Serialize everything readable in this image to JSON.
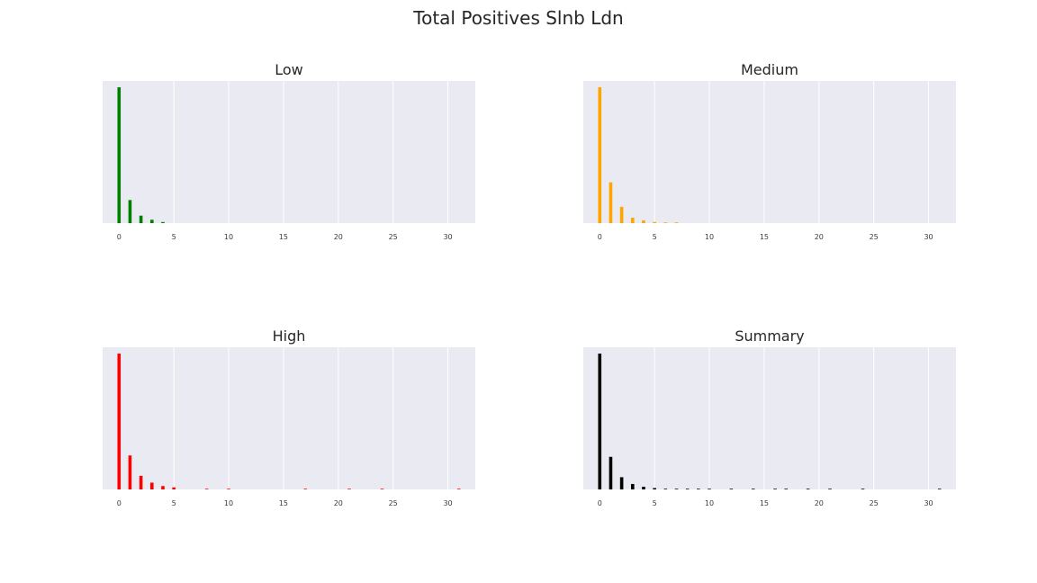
{
  "figure_title": "Total Positives Slnb Ldn",
  "chart_data": [
    {
      "type": "bar",
      "title": "Low",
      "color": "#008000",
      "xlabel": "",
      "ylabel": "",
      "xlim": [
        -1.5,
        32.5
      ],
      "xticks": [
        0,
        5,
        10,
        15,
        20,
        25,
        30
      ],
      "grid": true,
      "x": [
        0,
        1,
        2,
        3,
        4
      ],
      "values": [
        100,
        17,
        5.5,
        2.5,
        0.8
      ]
    },
    {
      "type": "bar",
      "title": "Medium",
      "color": "#FFA500",
      "xlabel": "",
      "ylabel": "",
      "xlim": [
        -1.5,
        32.5
      ],
      "xticks": [
        0,
        5,
        10,
        15,
        20,
        25,
        30
      ],
      "grid": true,
      "x": [
        0,
        1,
        2,
        3,
        4,
        5,
        6,
        7
      ],
      "values": [
        100,
        30,
        12,
        4,
        2,
        0.8,
        0.5,
        0.5
      ]
    },
    {
      "type": "bar",
      "title": "High",
      "color": "#FF0000",
      "xlabel": "",
      "ylabel": "",
      "xlim": [
        -1.5,
        32.5
      ],
      "xticks": [
        0,
        5,
        10,
        15,
        20,
        25,
        30
      ],
      "grid": true,
      "x": [
        0,
        1,
        2,
        3,
        4,
        5,
        8,
        10,
        17,
        21,
        24,
        31
      ],
      "values": [
        100,
        25,
        10,
        5,
        2.5,
        1.5,
        0.5,
        0.5,
        0.5,
        0.5,
        0.5,
        0.5
      ]
    },
    {
      "type": "bar",
      "title": "Summary",
      "color": "#000000",
      "xlabel": "",
      "ylabel": "",
      "xlim": [
        -1.5,
        32.5
      ],
      "xticks": [
        0,
        5,
        10,
        15,
        20,
        25,
        30
      ],
      "grid": true,
      "x": [
        0,
        1,
        2,
        3,
        4,
        5,
        6,
        7,
        8,
        9,
        10,
        12,
        14,
        16,
        17,
        19,
        21,
        24,
        31
      ],
      "values": [
        100,
        24,
        9,
        4,
        2,
        1,
        0.5,
        0.5,
        0.5,
        0.5,
        0.5,
        0.5,
        0.5,
        0.5,
        0.5,
        0.5,
        0.5,
        0.5,
        0.5
      ]
    }
  ]
}
